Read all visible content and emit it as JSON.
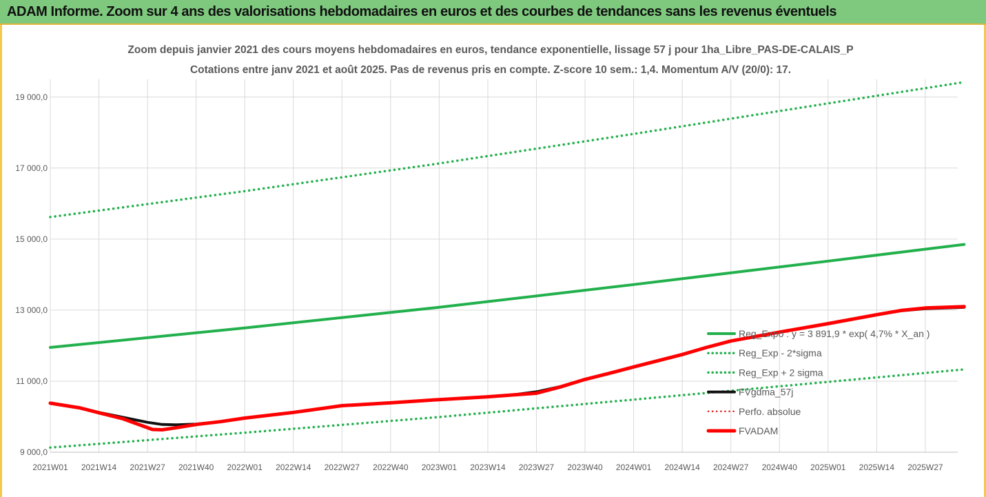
{
  "header": {
    "title": "ADAM Informe. Zoom sur 4 ans des valorisations hebdomadaires en euros et des courbes de tendances sans les revenus éventuels"
  },
  "chart_data": {
    "type": "line",
    "title": "Zoom depuis janvier 2021 des cours moyens hebdomadaires en euros, tendance exponentielle, lissage 57 j pour 1ha_Libre_PAS-DE-CALAIS_P",
    "subtitle": "Cotations entre janv 2021 et août 2025. Pas de revenus pris en compte. Z-score 10 sem.: 1,4. Momentum A/V (20/0): 17.",
    "xlabel": "",
    "ylabel": "",
    "ylim": [
      9000,
      19500
    ],
    "yticks": [
      9000,
      11000,
      13000,
      15000,
      17000,
      19000
    ],
    "ytick_labels": [
      "9 000,0",
      "11 000,0",
      "13 000,0",
      "15 000,0",
      "17 000,0",
      "19 000,0"
    ],
    "x_categories": [
      "2021W01",
      "2021W14",
      "2021W27",
      "2021W40",
      "2022W01",
      "2022W14",
      "2022W27",
      "2022W40",
      "2023W01",
      "2023W14",
      "2023W27",
      "2023W40",
      "2024W01",
      "2024W14",
      "2024W27",
      "2024W40",
      "2025W01",
      "2025W14",
      "2025W27"
    ],
    "x_end_index": 18.8,
    "grid": true,
    "legend_position": "right",
    "series": [
      {
        "name": "Reg_Expo : y = 3 891,9 * exp( 4,7% *  X_an )",
        "style": "solid",
        "color": "#22b04c",
        "width": 4,
        "points": [
          [
            0,
            11950
          ],
          [
            4,
            12500
          ],
          [
            8,
            13080
          ],
          [
            12,
            13720
          ],
          [
            16,
            14380
          ],
          [
            18.8,
            14850
          ]
        ]
      },
      {
        "name": "Reg_Exp - 2*sigma",
        "style": "dotted",
        "color": "#22b04c",
        "width": 3.5,
        "points": [
          [
            0,
            9130
          ],
          [
            4,
            9550
          ],
          [
            8,
            9990
          ],
          [
            12,
            10480
          ],
          [
            16,
            10980
          ],
          [
            18.8,
            11330
          ]
        ]
      },
      {
        "name": "Reg_Exp + 2 sigma",
        "style": "dotted",
        "color": "#22b04c",
        "width": 3.5,
        "points": [
          [
            0,
            15620
          ],
          [
            4,
            16350
          ],
          [
            8,
            17130
          ],
          [
            12,
            17960
          ],
          [
            16,
            18820
          ],
          [
            18.8,
            19420
          ]
        ]
      },
      {
        "name": "FVgdma_57j",
        "style": "solid",
        "color": "#111111",
        "width": 4,
        "points": [
          [
            0,
            10380
          ],
          [
            0.6,
            10250
          ],
          [
            1,
            10120
          ],
          [
            1.5,
            9980
          ],
          [
            2,
            9840
          ],
          [
            2.3,
            9780
          ],
          [
            2.6,
            9770
          ],
          [
            3,
            9790
          ],
          [
            3.5,
            9860
          ],
          [
            4,
            9960
          ],
          [
            5,
            10120
          ],
          [
            6,
            10310
          ],
          [
            7,
            10390
          ],
          [
            8,
            10480
          ],
          [
            9,
            10560
          ],
          [
            9.5,
            10610
          ],
          [
            10,
            10700
          ],
          [
            10.5,
            10850
          ],
          [
            11,
            11050
          ],
          [
            11.5,
            11220
          ],
          [
            12,
            11400
          ],
          [
            13,
            11750
          ],
          [
            13.5,
            11950
          ],
          [
            14,
            12130
          ],
          [
            15,
            12380
          ],
          [
            16,
            12620
          ],
          [
            17,
            12870
          ],
          [
            17.5,
            12980
          ],
          [
            18,
            13040
          ],
          [
            18.8,
            13080
          ]
        ]
      },
      {
        "name": "Perfo. absolue",
        "style": "dotted",
        "color": "#e31a1c",
        "width": 2.5,
        "points": []
      },
      {
        "name": "FVADAM",
        "style": "solid",
        "color": "#ff0000",
        "width": 5,
        "points": [
          [
            0,
            10380
          ],
          [
            0.6,
            10250
          ],
          [
            1,
            10110
          ],
          [
            1.5,
            9940
          ],
          [
            1.9,
            9740
          ],
          [
            2.1,
            9640
          ],
          [
            2.3,
            9630
          ],
          [
            2.6,
            9690
          ],
          [
            3,
            9780
          ],
          [
            3.5,
            9860
          ],
          [
            4,
            9960
          ],
          [
            5,
            10120
          ],
          [
            6,
            10310
          ],
          [
            7,
            10390
          ],
          [
            8,
            10480
          ],
          [
            9,
            10560
          ],
          [
            9.5,
            10610
          ],
          [
            10,
            10660
          ],
          [
            10.5,
            10840
          ],
          [
            11,
            11050
          ],
          [
            11.5,
            11220
          ],
          [
            12,
            11400
          ],
          [
            13,
            11750
          ],
          [
            13.5,
            11950
          ],
          [
            14,
            12130
          ],
          [
            15,
            12380
          ],
          [
            16,
            12620
          ],
          [
            17,
            12870
          ],
          [
            17.5,
            12990
          ],
          [
            18,
            13060
          ],
          [
            18.8,
            13100
          ]
        ]
      }
    ]
  }
}
